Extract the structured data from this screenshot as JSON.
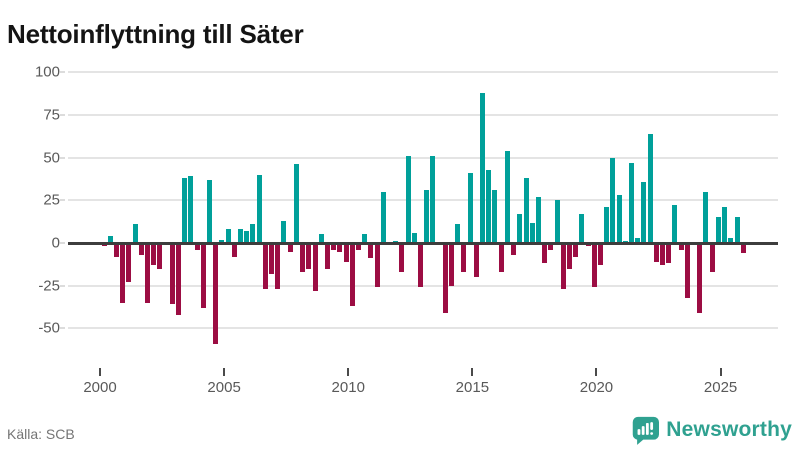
{
  "title": "Nettoinflyttning till Säter",
  "source": "Källa: SCB",
  "branding": {
    "logo_text": "Newsworthy",
    "logo_color": "#2fa190",
    "icon_name": "newsworthy-bars-icon"
  },
  "chart_data": {
    "type": "bar",
    "title": "Nettoinflyttning till Säter",
    "frequency": "quarterly",
    "start_period": "2000-Q1",
    "end_period": "2025-Q4",
    "grid": "horizontal",
    "legend": "none",
    "ylim": [
      -62,
      103
    ],
    "y_ticks": [
      100,
      75,
      50,
      25,
      0,
      -25,
      -50
    ],
    "x_tick_years": [
      "2000",
      "2005",
      "2010",
      "2015",
      "2020",
      "2025"
    ],
    "colors": {
      "positive": "#00a09a",
      "negative": "#9c0d43"
    },
    "values": [
      -2,
      4,
      -8,
      -35,
      -23,
      11,
      -7,
      -35,
      -13,
      -15,
      0,
      -36,
      -42,
      38,
      39,
      -4,
      -38,
      37,
      -59,
      2,
      8,
      -8,
      8,
      7,
      11,
      40,
      -27,
      -18,
      -27,
      13,
      -5,
      46,
      -17,
      -15,
      -28,
      5,
      -15,
      -4,
      -5,
      -11,
      -37,
      -4,
      5,
      -9,
      -26,
      30,
      0,
      1,
      -17,
      51,
      6,
      -26,
      31,
      51,
      0,
      -41,
      -25,
      11,
      -17,
      41,
      -20,
      88,
      43,
      31,
      -17,
      54,
      -7,
      17,
      38,
      12,
      27,
      -12,
      -4,
      25,
      -27,
      -15,
      -8,
      17,
      -2,
      -26,
      -13,
      21,
      50,
      28,
      1,
      47,
      3,
      36,
      64,
      -11,
      -13,
      -12,
      22,
      -4,
      -32,
      0,
      -41,
      30,
      -17,
      15,
      21,
      3,
      15,
      -6
    ]
  }
}
